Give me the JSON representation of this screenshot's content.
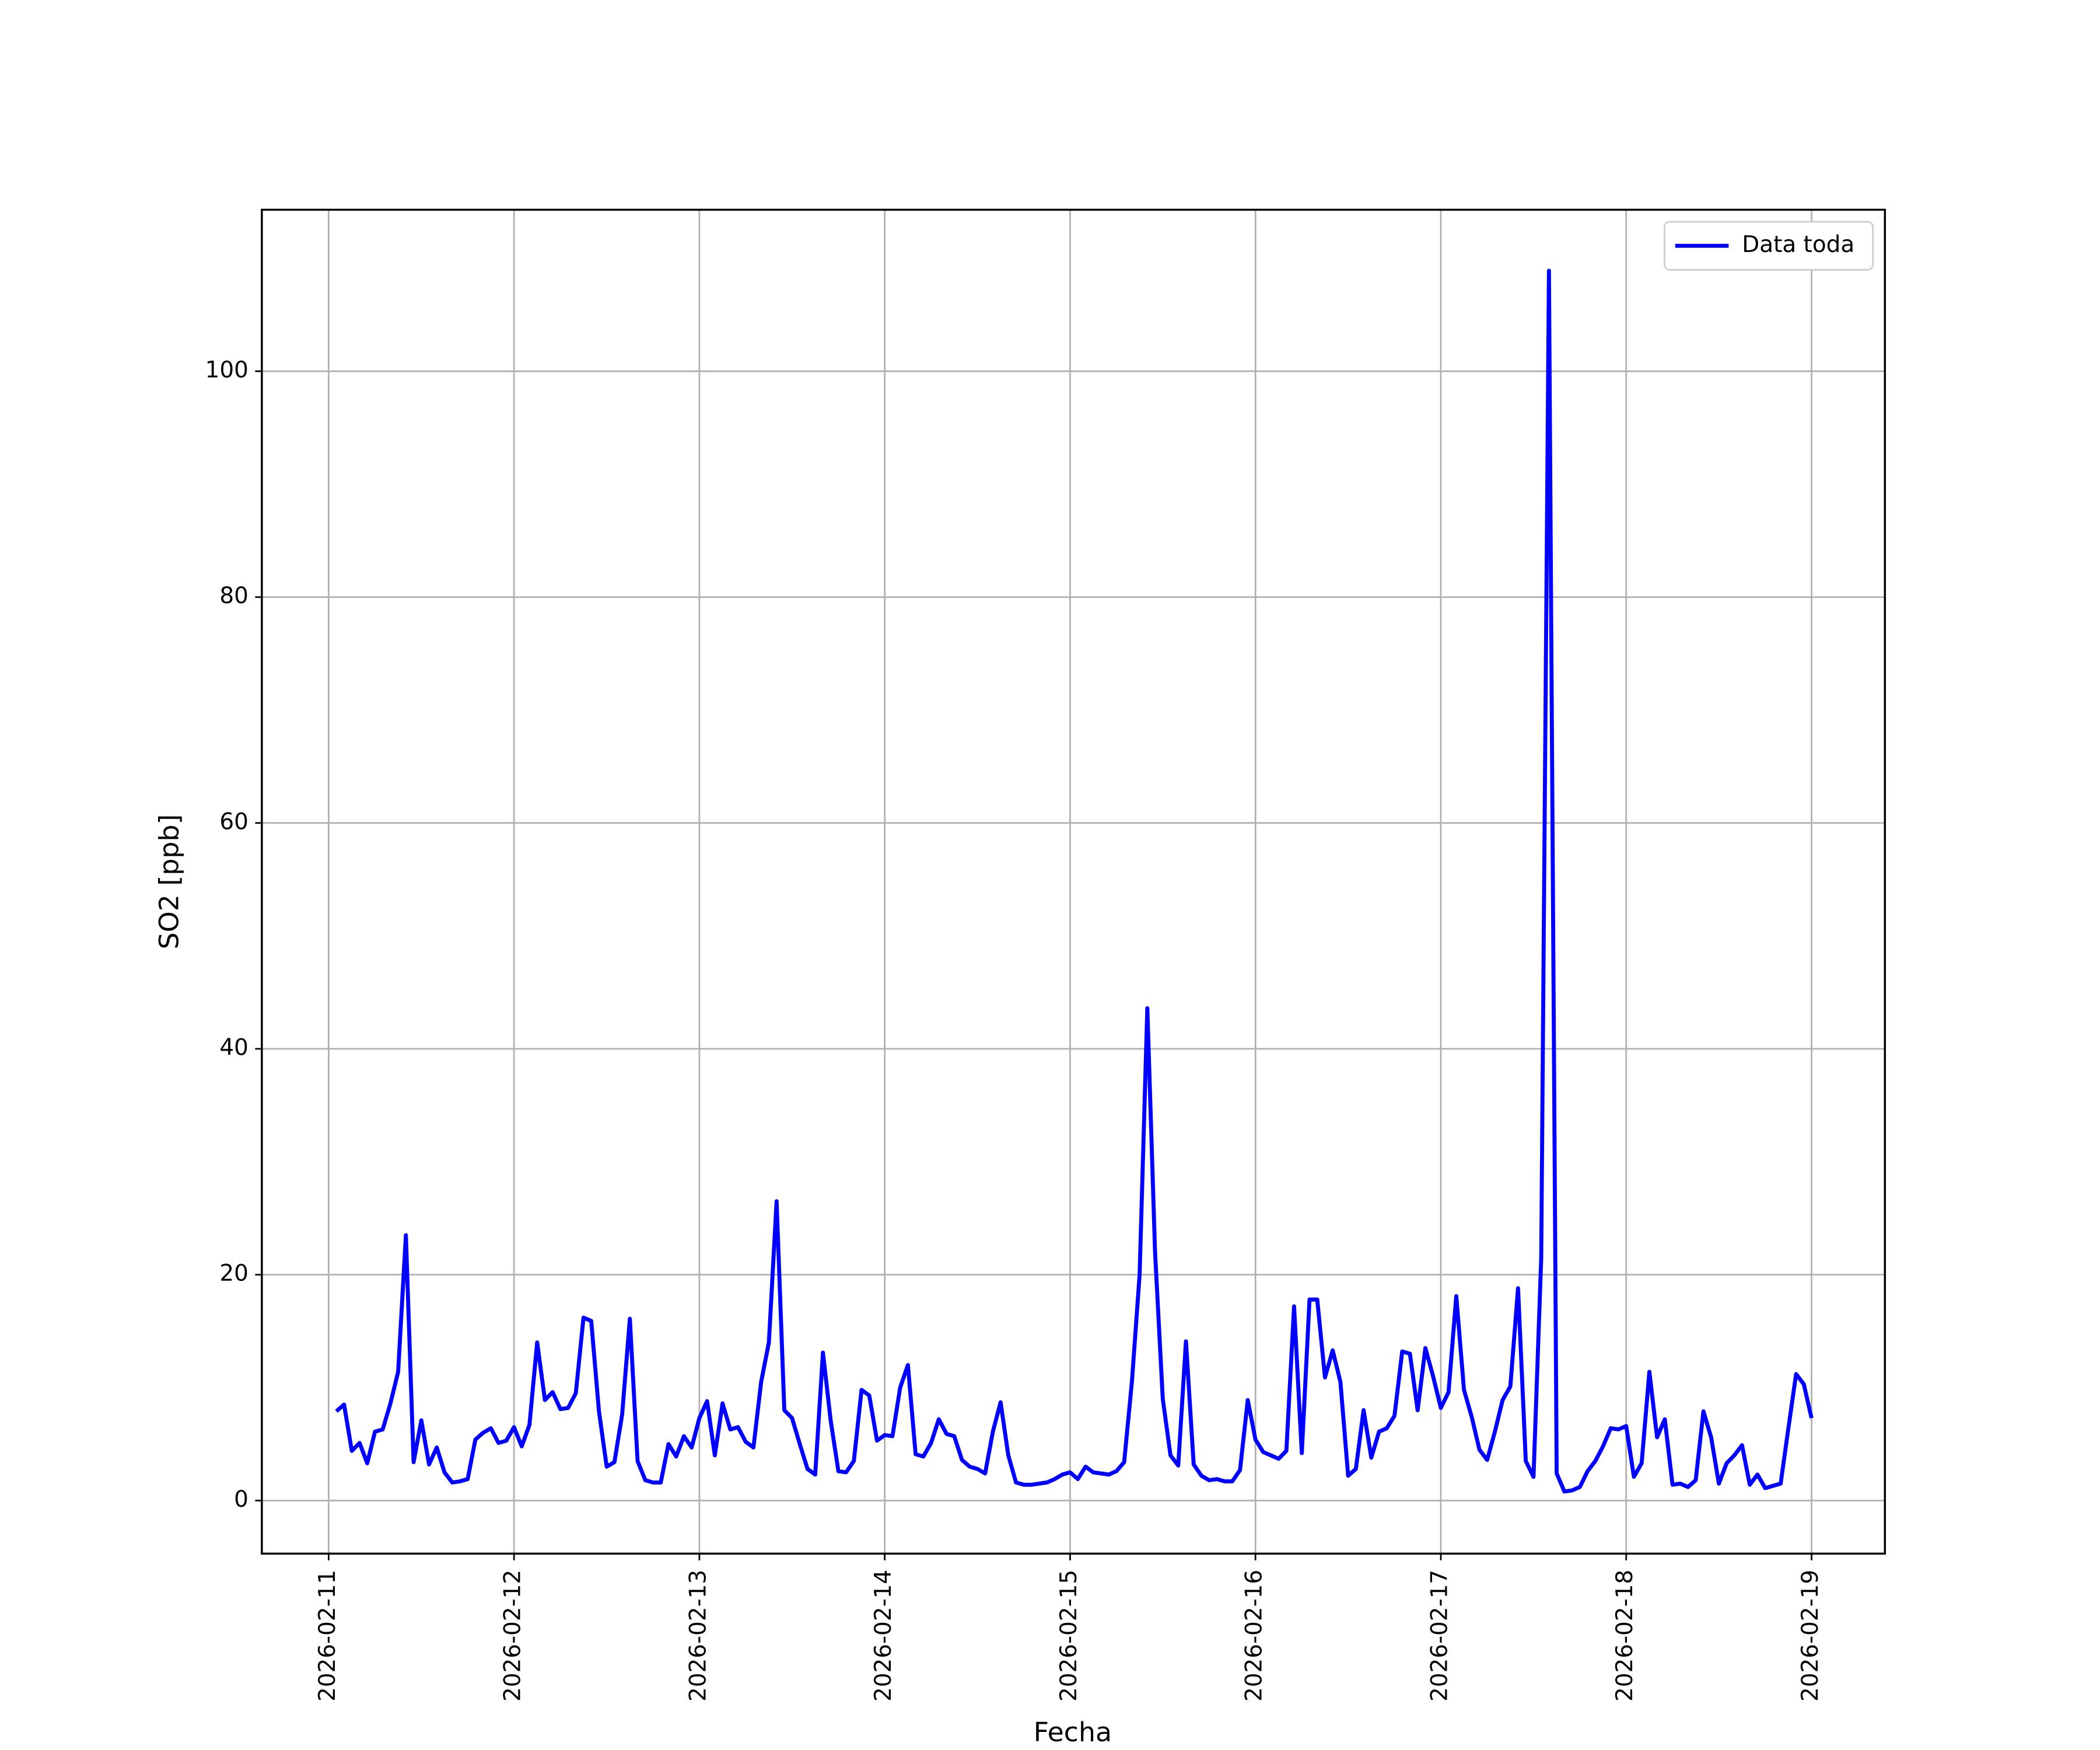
{
  "chart_data": {
    "type": "line",
    "xlabel": "Fecha",
    "ylabel": "SO2 [ppb]",
    "xlim": [
      "2026-02-10 15:21",
      "2026-02-19 09:30"
    ],
    "xticks": [
      "2026-02-11",
      "2026-02-12",
      "2026-02-13",
      "2026-02-14",
      "2026-02-15",
      "2026-02-16",
      "2026-02-17",
      "2026-02-18",
      "2026-02-19"
    ],
    "ylim": [
      -4.7,
      114.3
    ],
    "yticks": [
      0,
      20,
      40,
      60,
      80,
      100
    ],
    "grid": true,
    "legend": "upper right",
    "x": [
      "2026-02-11 01:00",
      "2026-02-11 02:00",
      "2026-02-11 03:00",
      "2026-02-11 04:00",
      "2026-02-11 05:00",
      "2026-02-11 06:00",
      "2026-02-11 07:00",
      "2026-02-11 08:00",
      "2026-02-11 09:00",
      "2026-02-11 10:00",
      "2026-02-11 11:00",
      "2026-02-11 12:00",
      "2026-02-11 13:00",
      "2026-02-11 14:00",
      "2026-02-11 15:00",
      "2026-02-11 16:00",
      "2026-02-11 17:00",
      "2026-02-11 18:00",
      "2026-02-11 19:00",
      "2026-02-11 20:00",
      "2026-02-11 21:00",
      "2026-02-11 22:00",
      "2026-02-11 23:00",
      "2026-02-12 00:00",
      "2026-02-12 01:00",
      "2026-02-12 02:00",
      "2026-02-12 03:00",
      "2026-02-12 04:00",
      "2026-02-12 05:00",
      "2026-02-12 06:00",
      "2026-02-12 07:00",
      "2026-02-12 08:00",
      "2026-02-12 09:00",
      "2026-02-12 10:00",
      "2026-02-12 11:00",
      "2026-02-12 12:00",
      "2026-02-12 13:00",
      "2026-02-12 14:00",
      "2026-02-12 15:00",
      "2026-02-12 16:00",
      "2026-02-12 17:00",
      "2026-02-12 18:00",
      "2026-02-12 19:00",
      "2026-02-12 20:00",
      "2026-02-12 21:00",
      "2026-02-12 22:00",
      "2026-02-12 23:00",
      "2026-02-13 00:00",
      "2026-02-13 01:00",
      "2026-02-13 02:00",
      "2026-02-13 03:00",
      "2026-02-13 04:00",
      "2026-02-13 05:00",
      "2026-02-13 06:00",
      "2026-02-13 07:00",
      "2026-02-13 08:00",
      "2026-02-13 09:00",
      "2026-02-13 10:00",
      "2026-02-13 11:00",
      "2026-02-13 12:00",
      "2026-02-13 13:00",
      "2026-02-13 14:00",
      "2026-02-13 15:00",
      "2026-02-13 16:00",
      "2026-02-13 17:00",
      "2026-02-13 18:00",
      "2026-02-13 19:00",
      "2026-02-13 20:00",
      "2026-02-13 21:00",
      "2026-02-13 22:00",
      "2026-02-13 23:00",
      "2026-02-14 00:00",
      "2026-02-14 01:00",
      "2026-02-14 02:00",
      "2026-02-14 03:00",
      "2026-02-14 04:00",
      "2026-02-14 05:00",
      "2026-02-14 06:00",
      "2026-02-14 07:00",
      "2026-02-14 08:00",
      "2026-02-14 09:00",
      "2026-02-14 10:00",
      "2026-02-14 11:00",
      "2026-02-14 12:00",
      "2026-02-14 13:00",
      "2026-02-14 14:00",
      "2026-02-14 15:00",
      "2026-02-14 16:00",
      "2026-02-14 17:00",
      "2026-02-14 18:00",
      "2026-02-14 19:00",
      "2026-02-14 20:00",
      "2026-02-14 21:00",
      "2026-02-14 22:00",
      "2026-02-14 23:00",
      "2026-02-15 00:00",
      "2026-02-15 01:00",
      "2026-02-15 02:00",
      "2026-02-15 03:00",
      "2026-02-15 04:00",
      "2026-02-15 05:00",
      "2026-02-15 06:00",
      "2026-02-15 07:00",
      "2026-02-15 08:00",
      "2026-02-15 09:00",
      "2026-02-15 10:00",
      "2026-02-15 11:00",
      "2026-02-15 12:00",
      "2026-02-15 13:00",
      "2026-02-15 14:00",
      "2026-02-15 15:00",
      "2026-02-15 16:00",
      "2026-02-15 17:00",
      "2026-02-15 18:00",
      "2026-02-15 19:00",
      "2026-02-15 20:00",
      "2026-02-15 21:00",
      "2026-02-15 22:00",
      "2026-02-15 23:00",
      "2026-02-16 00:00",
      "2026-02-16 01:00",
      "2026-02-16 02:00",
      "2026-02-16 03:00",
      "2026-02-16 04:00",
      "2026-02-16 05:00",
      "2026-02-16 06:00",
      "2026-02-16 07:00",
      "2026-02-16 08:00",
      "2026-02-16 09:00",
      "2026-02-16 10:00",
      "2026-02-16 11:00",
      "2026-02-16 12:00",
      "2026-02-16 13:00",
      "2026-02-16 14:00",
      "2026-02-16 15:00",
      "2026-02-16 16:00",
      "2026-02-16 17:00",
      "2026-02-16 18:00",
      "2026-02-16 19:00",
      "2026-02-16 20:00",
      "2026-02-16 21:00",
      "2026-02-16 22:00",
      "2026-02-16 23:00",
      "2026-02-17 00:00",
      "2026-02-17 01:00",
      "2026-02-17 02:00",
      "2026-02-17 03:00",
      "2026-02-17 04:00",
      "2026-02-17 05:00",
      "2026-02-17 06:00",
      "2026-02-17 07:00",
      "2026-02-17 08:00",
      "2026-02-17 09:00",
      "2026-02-17 10:00",
      "2026-02-17 11:00",
      "2026-02-17 12:00",
      "2026-02-17 13:00",
      "2026-02-17 14:00",
      "2026-02-17 15:00",
      "2026-02-17 16:00",
      "2026-02-17 17:00",
      "2026-02-17 18:00",
      "2026-02-17 19:00",
      "2026-02-17 20:00",
      "2026-02-17 21:00",
      "2026-02-17 22:00",
      "2026-02-17 23:00",
      "2026-02-18 00:00",
      "2026-02-18 01:00",
      "2026-02-18 02:00",
      "2026-02-18 03:00",
      "2026-02-18 04:00",
      "2026-02-18 05:00",
      "2026-02-18 06:00",
      "2026-02-18 07:00",
      "2026-02-18 08:00",
      "2026-02-18 09:00",
      "2026-02-18 10:00",
      "2026-02-18 11:00",
      "2026-02-18 12:00",
      "2026-02-18 13:00",
      "2026-02-18 14:00",
      "2026-02-18 15:00",
      "2026-02-18 16:00",
      "2026-02-18 17:00",
      "2026-02-18 18:00",
      "2026-02-18 19:00",
      "2026-02-18 20:00",
      "2026-02-18 21:00",
      "2026-02-18 22:00",
      "2026-02-18 23:00",
      "2026-02-19 00:00"
    ],
    "series": [
      {
        "name": "Data toda",
        "color": "#0000ff",
        "values": [
          7.9,
          8.5,
          4.4,
          5.1,
          3.3,
          6.1,
          6.3,
          8.6,
          11.4,
          23.5,
          3.4,
          7.1,
          3.2,
          4.7,
          2.5,
          1.6,
          1.7,
          1.9,
          5.4,
          6.0,
          6.4,
          5.1,
          5.3,
          6.5,
          4.8,
          6.7,
          14.0,
          8.9,
          9.6,
          8.1,
          8.2,
          9.5,
          16.2,
          15.9,
          7.9,
          3.0,
          3.4,
          7.6,
          16.1,
          3.5,
          1.8,
          1.6,
          1.6,
          5.0,
          3.9,
          5.7,
          4.7,
          7.3,
          8.8,
          4.0,
          8.6,
          6.3,
          6.5,
          5.2,
          4.7,
          10.5,
          14.0,
          26.5,
          8.0,
          7.3,
          5.0,
          2.8,
          2.3,
          13.1,
          7.1,
          2.6,
          2.5,
          3.5,
          9.8,
          9.3,
          5.3,
          5.8,
          5.7,
          10.0,
          12.0,
          4.1,
          3.9,
          5.1,
          7.2,
          5.9,
          5.7,
          3.6,
          3.0,
          2.8,
          2.4,
          6.1,
          8.7,
          4.0,
          1.6,
          1.4,
          1.4,
          1.5,
          1.6,
          1.9,
          2.3,
          2.5,
          1.9,
          3.0,
          2.5,
          2.4,
          2.3,
          2.6,
          3.4,
          10.5,
          20.0,
          43.6,
          22.0,
          9.0,
          4.0,
          3.1,
          14.1,
          3.2,
          2.2,
          1.8,
          1.9,
          1.7,
          1.7,
          2.7,
          8.9,
          5.4,
          4.3,
          4.0,
          3.7,
          4.4,
          17.2,
          4.2,
          17.8,
          17.8,
          10.9,
          13.3,
          10.5,
          2.2,
          2.8,
          8.0,
          3.8,
          6.1,
          6.4,
          7.5,
          13.2,
          13.0,
          8.0,
          13.5,
          11.0,
          8.2,
          9.6,
          18.1,
          9.8,
          7.4,
          4.5,
          3.6,
          6.1,
          8.9,
          10.1,
          18.8,
          3.5,
          2.1,
          21.5,
          108.9,
          2.4,
          0.8,
          0.9,
          1.2,
          2.6,
          3.5,
          4.8,
          6.4,
          6.3,
          6.6,
          2.1,
          3.3,
          11.4,
          5.6,
          7.2,
          1.4,
          1.5,
          1.2,
          1.8,
          7.9,
          5.6,
          1.5,
          3.3,
          4.0,
          4.9,
          1.4,
          2.3,
          1.1,
          1.3,
          1.5,
          6.4,
          11.2,
          10.3,
          7.3
        ]
      }
    ]
  }
}
